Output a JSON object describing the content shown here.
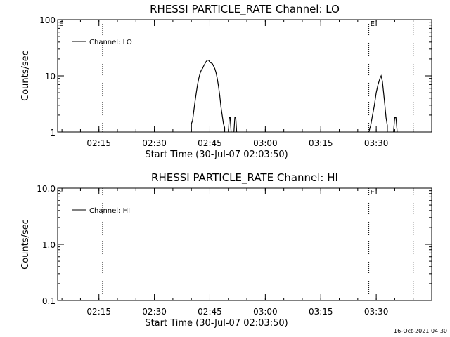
{
  "footer": "16-Oct-2021 04:30",
  "chart_data": [
    {
      "type": "line",
      "title": "RHESSI PARTICLE_RATE Channel: LO",
      "xlabel": "Start Time (30-Jul-07 02:03:50)",
      "ylabel": "Counts/sec",
      "yscale": "log",
      "ylim": [
        1,
        100
      ],
      "yticks": [
        {
          "v": 1,
          "label": "1"
        },
        {
          "v": 10,
          "label": "10"
        },
        {
          "v": 100,
          "label": "100"
        }
      ],
      "xlim": [
        "02:03:50",
        "03:45:00"
      ],
      "xticks": [
        {
          "v": "02:15",
          "label": "02:15"
        },
        {
          "v": "02:30",
          "label": "02:30"
        },
        {
          "v": "02:45",
          "label": "02:45"
        },
        {
          "v": "03:00",
          "label": "03:00"
        },
        {
          "v": "03:15",
          "label": "03:15"
        },
        {
          "v": "03:30",
          "label": "03:30"
        }
      ],
      "legend": {
        "placement": "top-left",
        "entries": [
          "Channel: LO"
        ]
      },
      "vlines": [
        {
          "x": "02:03:50",
          "label": "E"
        },
        {
          "x": "02:16:00",
          "label": ""
        },
        {
          "x": "03:28:00",
          "label": "E"
        },
        {
          "x": "03:40:00",
          "label": ""
        }
      ],
      "series": [
        {
          "name": "Channel: LO",
          "segments": [
            {
              "x": [
                "02:40:00",
                "02:40:00",
                "02:40:20",
                "02:40:40",
                "02:41:00",
                "02:41:20",
                "02:41:40",
                "02:42:00",
                "02:42:20",
                "02:42:40",
                "02:43:00",
                "02:43:20",
                "02:43:40",
                "02:44:00",
                "02:44:20",
                "02:44:40",
                "02:45:00",
                "02:45:20",
                "02:45:40",
                "02:46:00",
                "02:46:20",
                "02:46:40",
                "02:47:00",
                "02:47:20",
                "02:47:40",
                "02:48:00",
                "02:48:20",
                "02:48:40",
                "02:49:00",
                "02:49:00"
              ],
              "y": [
                1,
                1.4,
                1.6,
                2.4,
                3.5,
                5,
                7,
                9,
                11,
                12.5,
                13.5,
                15,
                16.5,
                18,
                19,
                19,
                17.5,
                17,
                16.5,
                15,
                13.5,
                11.5,
                9,
                6.5,
                4.5,
                2.8,
                2,
                1.4,
                1.2,
                1
              ]
            },
            {
              "x": [
                "02:50:00",
                "02:50:15",
                "02:50:30",
                "02:50:45"
              ],
              "y": [
                1,
                1.8,
                1.8,
                1
              ]
            },
            {
              "x": [
                "02:51:30",
                "02:51:45",
                "02:52:00",
                "02:52:15"
              ],
              "y": [
                1,
                1.8,
                1.8,
                1
              ]
            },
            {
              "x": [
                "03:28:00",
                "03:28:30",
                "03:29:00",
                "03:29:30",
                "03:30:00",
                "03:30:30",
                "03:31:00",
                "03:31:20",
                "03:31:40",
                "03:32:00",
                "03:32:20",
                "03:32:40",
                "03:33:00",
                "03:33:00"
              ],
              "y": [
                1,
                1.3,
                2,
                3,
                5,
                7,
                9,
                10,
                8,
                5,
                3,
                1.8,
                1.3,
                1
              ]
            },
            {
              "x": [
                "03:34:40",
                "03:35:00",
                "03:35:20",
                "03:35:40"
              ],
              "y": [
                1,
                1.8,
                1.8,
                1
              ]
            }
          ]
        }
      ]
    },
    {
      "type": "line",
      "title": "RHESSI PARTICLE_RATE Channel: HI",
      "xlabel": "Start Time (30-Jul-07 02:03:50)",
      "ylabel": "Counts/sec",
      "yscale": "log",
      "ylim": [
        0.1,
        10
      ],
      "yticks": [
        {
          "v": 0.1,
          "label": "0.1"
        },
        {
          "v": 1,
          "label": "1.0"
        },
        {
          "v": 10,
          "label": "10.0"
        }
      ],
      "xlim": [
        "02:03:50",
        "03:45:00"
      ],
      "xticks": [
        {
          "v": "02:15",
          "label": "02:15"
        },
        {
          "v": "02:30",
          "label": "02:30"
        },
        {
          "v": "02:45",
          "label": "02:45"
        },
        {
          "v": "03:00",
          "label": "03:00"
        },
        {
          "v": "03:15",
          "label": "03:15"
        },
        {
          "v": "03:30",
          "label": "03:30"
        }
      ],
      "legend": {
        "placement": "top-left",
        "entries": [
          "Channel: HI"
        ]
      },
      "vlines": [
        {
          "x": "02:03:50",
          "label": "E"
        },
        {
          "x": "02:16:00",
          "label": ""
        },
        {
          "x": "03:28:00",
          "label": "E"
        },
        {
          "x": "03:40:00",
          "label": ""
        }
      ],
      "series": [
        {
          "name": "Channel: HI",
          "segments": []
        }
      ]
    }
  ]
}
